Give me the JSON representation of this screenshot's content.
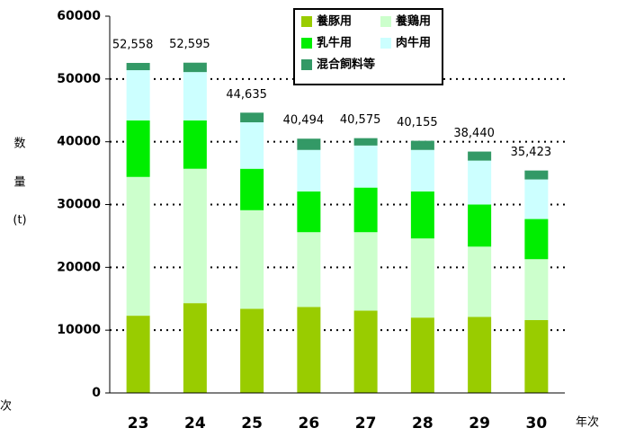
{
  "chart_data": {
    "type": "stacked_bar",
    "categories": [
      "23",
      "24",
      "25",
      "26",
      "27",
      "28",
      "29",
      "30"
    ],
    "series": [
      {
        "name": "養豚用",
        "color": "#99cc00",
        "values": [
          12300,
          14300,
          13400,
          13700,
          13100,
          12000,
          12100,
          11600
        ]
      },
      {
        "name": "養鶏用",
        "color": "#ccffcc",
        "values": [
          22100,
          21400,
          15700,
          11900,
          12500,
          12600,
          11200,
          9700
        ]
      },
      {
        "name": "乳牛用",
        "color": "#00ee00",
        "values": [
          9000,
          7700,
          6600,
          6500,
          7100,
          7500,
          6700,
          6400
        ]
      },
      {
        "name": "肉牛用",
        "color": "#ccffff",
        "values": [
          8000,
          7700,
          7400,
          6600,
          6700,
          6600,
          7000,
          6300
        ]
      },
      {
        "name": "混合飼料等",
        "color": "#339966",
        "values": [
          1158,
          1495,
          1535,
          1794,
          1175,
          1455,
          1440,
          1423
        ]
      }
    ],
    "totals": [
      52558,
      52595,
      44635,
      40494,
      40575,
      40155,
      38440,
      35423
    ],
    "total_labels": [
      "52,558",
      "52,595",
      "44,635",
      "40,494",
      "40,575",
      "40,155",
      "38,440",
      "35,423"
    ],
    "ylim": [
      0,
      60000
    ],
    "yticks": [
      0,
      10000,
      20000,
      30000,
      40000,
      50000,
      60000
    ],
    "y_label": [
      "数",
      "量",
      "(t)"
    ],
    "x_label": "年次",
    "left_fragment": "次",
    "grid": true,
    "legend": "top-right"
  }
}
